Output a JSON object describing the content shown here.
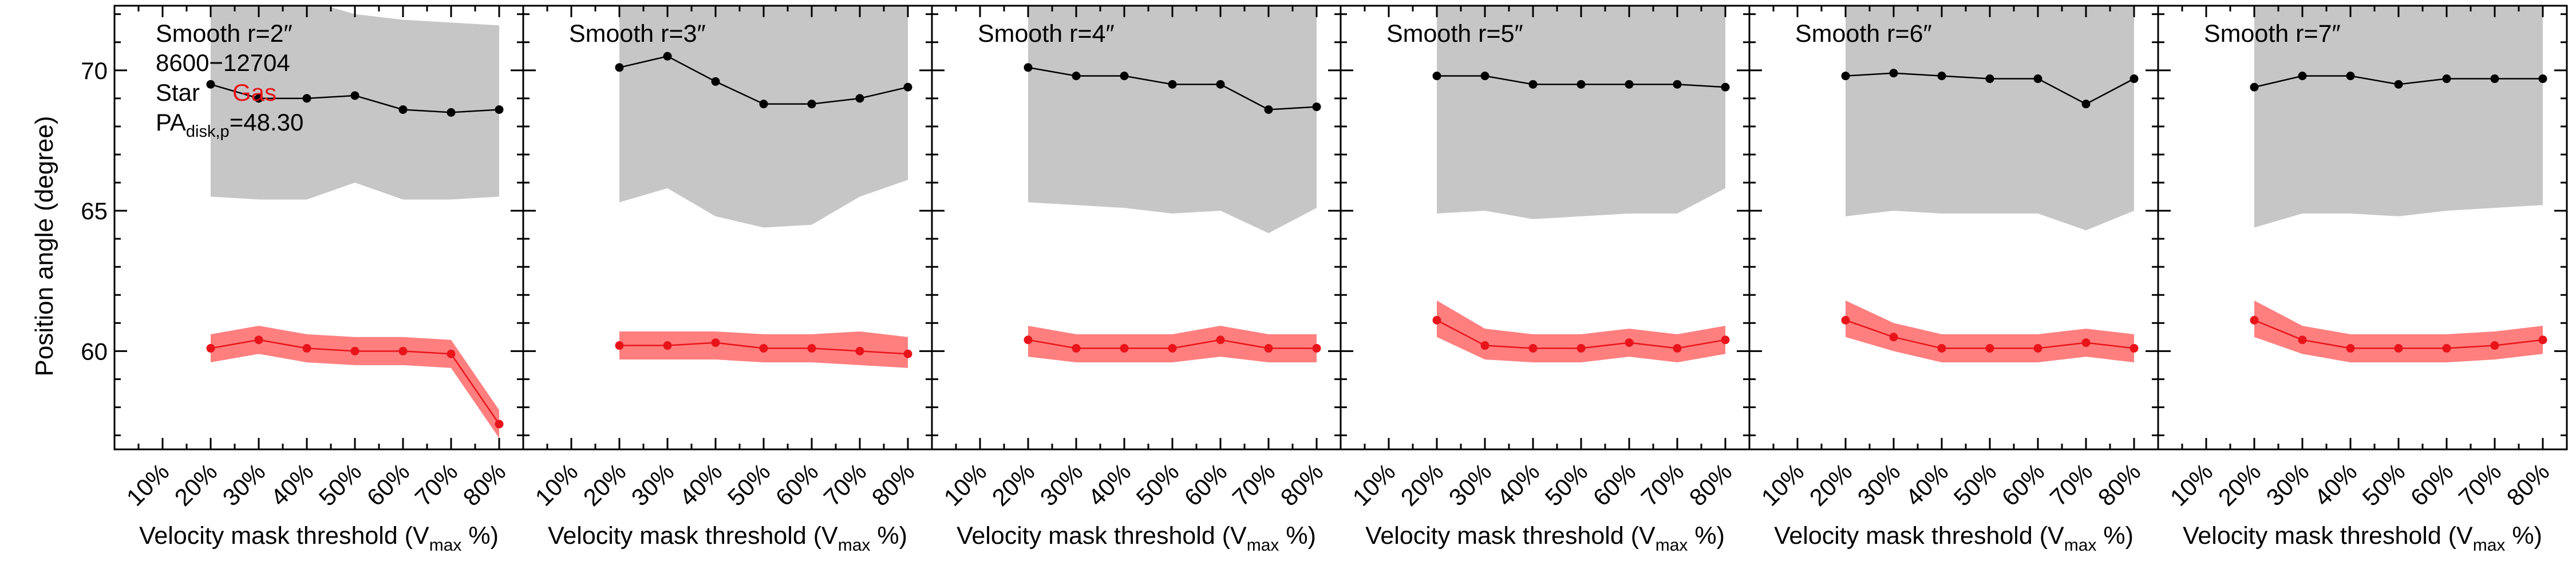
{
  "chart_data": {
    "type": "line",
    "ylabel": "Position angle (degree)",
    "xlabel": "Velocity mask threshold (V",
    "xlabel_sub": "max",
    "xlabel_end": " %)",
    "xlim": [
      0,
      85
    ],
    "ylim": [
      56.5,
      72.3
    ],
    "x_ticks": [
      10,
      20,
      30,
      40,
      50,
      60,
      70,
      80
    ],
    "x_tick_labels": [
      "10%",
      "20%",
      "30%",
      "40%",
      "50%",
      "60%",
      "70%",
      "80%"
    ],
    "y_ticks": [
      60,
      65,
      70
    ],
    "y_tick_labels": [
      "60",
      "65",
      "70"
    ],
    "info": {
      "id": "8600−12704",
      "star_label": "Star",
      "gas_label": "Gas",
      "pa_prefix": "PA",
      "pa_sub": "disk,p",
      "pa_value": "=48.30"
    },
    "colors": {
      "star": "#000000",
      "star_band": "#c6c6c6",
      "gas": "#e8141a",
      "gas_band": "#ff7f7f"
    },
    "panels": [
      {
        "title": "Smooth r=2″",
        "x": [
          20,
          30,
          40,
          50,
          60,
          70,
          80
        ],
        "star": [
          69.5,
          69.0,
          69.0,
          69.1,
          68.6,
          68.5,
          68.6
        ],
        "star_upper": [
          73.0,
          73.0,
          72.5,
          72.0,
          71.8,
          71.7,
          71.6
        ],
        "star_lower": [
          65.5,
          65.4,
          65.4,
          66.0,
          65.4,
          65.4,
          65.5
        ],
        "gas": [
          60.1,
          60.4,
          60.1,
          60.0,
          60.0,
          59.9,
          57.4
        ],
        "gas_upper": [
          60.6,
          60.9,
          60.6,
          60.5,
          60.5,
          60.4,
          57.9
        ],
        "gas_lower": [
          59.6,
          59.9,
          59.6,
          59.5,
          59.5,
          59.4,
          56.9
        ]
      },
      {
        "title": "Smooth r=3″",
        "x": [
          20,
          30,
          40,
          50,
          60,
          70,
          80
        ],
        "star": [
          70.1,
          70.5,
          69.6,
          68.8,
          68.8,
          69.0,
          69.4
        ],
        "star_upper": [
          73.0,
          73.0,
          73.0,
          73.0,
          73.0,
          73.0,
          73.0
        ],
        "star_lower": [
          65.3,
          65.8,
          64.8,
          64.4,
          64.5,
          65.5,
          66.1
        ],
        "gas": [
          60.2,
          60.2,
          60.3,
          60.1,
          60.1,
          60.0,
          59.9
        ],
        "gas_upper": [
          60.7,
          60.7,
          60.7,
          60.6,
          60.6,
          60.7,
          60.5
        ],
        "gas_lower": [
          59.7,
          59.7,
          59.7,
          59.6,
          59.6,
          59.5,
          59.4
        ]
      },
      {
        "title": "Smooth r=4″",
        "x": [
          20,
          30,
          40,
          50,
          60,
          70,
          80
        ],
        "star": [
          70.1,
          69.8,
          69.8,
          69.5,
          69.5,
          68.6,
          68.7
        ],
        "star_upper": [
          73.0,
          73.0,
          73.0,
          73.0,
          73.0,
          73.0,
          73.0
        ],
        "star_lower": [
          65.3,
          65.2,
          65.1,
          64.9,
          65.0,
          64.2,
          65.1
        ],
        "gas": [
          60.4,
          60.1,
          60.1,
          60.1,
          60.4,
          60.1,
          60.1
        ],
        "gas_upper": [
          60.9,
          60.6,
          60.6,
          60.6,
          60.9,
          60.6,
          60.6
        ],
        "gas_lower": [
          59.8,
          59.6,
          59.6,
          59.6,
          59.8,
          59.6,
          59.6
        ]
      },
      {
        "title": "Smooth r=5″",
        "x": [
          20,
          30,
          40,
          50,
          60,
          70,
          80
        ],
        "star": [
          69.8,
          69.8,
          69.5,
          69.5,
          69.5,
          69.5,
          69.4
        ],
        "star_upper": [
          73.0,
          73.0,
          73.0,
          73.0,
          73.0,
          73.0,
          73.0
        ],
        "star_lower": [
          64.9,
          65.0,
          64.7,
          64.8,
          64.9,
          64.9,
          65.8
        ],
        "gas": [
          61.1,
          60.2,
          60.1,
          60.1,
          60.3,
          60.1,
          60.4
        ],
        "gas_upper": [
          61.8,
          60.8,
          60.6,
          60.6,
          60.8,
          60.6,
          60.9
        ],
        "gas_lower": [
          60.5,
          59.7,
          59.6,
          59.6,
          59.8,
          59.6,
          59.9
        ]
      },
      {
        "title": "Smooth r=6″",
        "x": [
          20,
          30,
          40,
          50,
          60,
          70,
          80
        ],
        "star": [
          69.8,
          69.9,
          69.8,
          69.7,
          69.7,
          68.8,
          69.7
        ],
        "star_upper": [
          73.0,
          73.0,
          73.0,
          73.0,
          73.0,
          73.0,
          73.0
        ],
        "star_lower": [
          64.8,
          65.0,
          64.9,
          64.9,
          64.9,
          64.3,
          65.0
        ],
        "gas": [
          61.1,
          60.5,
          60.1,
          60.1,
          60.1,
          60.3,
          60.1
        ],
        "gas_upper": [
          61.8,
          61.0,
          60.6,
          60.6,
          60.6,
          60.8,
          60.6
        ],
        "gas_lower": [
          60.5,
          60.0,
          59.6,
          59.6,
          59.6,
          59.8,
          59.6
        ]
      },
      {
        "title": "Smooth r=7″",
        "x": [
          20,
          30,
          40,
          50,
          60,
          70,
          80
        ],
        "star": [
          69.4,
          69.8,
          69.8,
          69.5,
          69.7,
          69.7,
          69.7
        ],
        "star_upper": [
          73.0,
          73.0,
          73.0,
          73.0,
          73.0,
          73.0,
          73.0
        ],
        "star_lower": [
          64.4,
          64.9,
          64.9,
          64.8,
          65.0,
          65.1,
          65.2
        ],
        "gas": [
          61.1,
          60.4,
          60.1,
          60.1,
          60.1,
          60.2,
          60.4
        ],
        "gas_upper": [
          61.8,
          60.9,
          60.6,
          60.6,
          60.6,
          60.7,
          60.9
        ],
        "gas_lower": [
          60.5,
          59.9,
          59.6,
          59.6,
          59.6,
          59.7,
          59.9
        ]
      }
    ]
  }
}
